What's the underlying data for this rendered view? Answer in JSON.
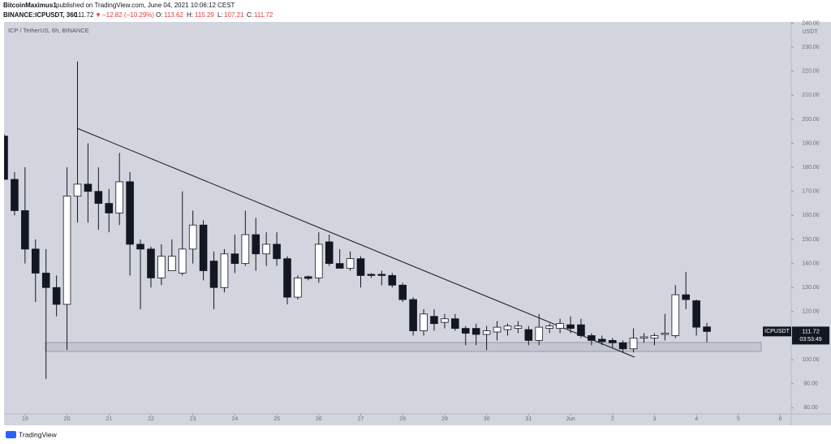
{
  "header": {
    "author": "BitcoinMaximus1",
    "published": "published on TradingView.com, June 04, 2021 10:06:12 CEST",
    "symbol": "BINANCE:ICPUSDT, 360",
    "last": "111.72",
    "arrow": "▼",
    "change": "−12.82 (−10.29%)",
    "o_label": "O:",
    "o": "113.62",
    "h_label": "H:",
    "h": "115.29",
    "l_label": "L:",
    "l": "107.21",
    "c_label": "C:",
    "c": "111.72"
  },
  "footer": {
    "brand": "TradingView"
  },
  "chart_data": {
    "type": "candlestick",
    "legend_title": "ICP / TetherUS, 6h, BINANCE",
    "y_axis_unit": "USDT",
    "up_color": "#ffffff",
    "down_color": "#131722",
    "grid": false,
    "x": [
      18.5,
      18.75,
      19,
      19.25,
      19.5,
      19.75,
      20,
      20.25,
      20.5,
      20.75,
      21,
      21.25,
      21.5,
      21.75,
      22,
      22.25,
      22.5,
      22.75,
      23,
      23.25,
      23.5,
      23.75,
      24,
      24.25,
      24.5,
      24.75,
      25,
      25.25,
      25.5,
      25.75,
      26,
      26.25,
      26.5,
      26.75,
      27,
      27.25,
      27.5,
      27.75,
      28,
      28.25,
      28.5,
      28.75,
      29,
      29.25,
      29.5,
      29.75,
      30,
      30.25,
      30.5,
      30.75,
      31,
      31.25,
      31.5,
      31.75,
      32,
      32.25,
      32.5,
      32.75,
      33,
      33.25,
      33.5,
      33.75,
      34,
      34.25,
      34.5,
      34.75,
      35,
      35.25
    ],
    "open": [
      193,
      175,
      162,
      146,
      136,
      130,
      123,
      168,
      173,
      170,
      165,
      161,
      174,
      148,
      146,
      134,
      137,
      136,
      146,
      156,
      141,
      130,
      144,
      140,
      152,
      144,
      148,
      142,
      126,
      134.5,
      134,
      149,
      140,
      138,
      142,
      135.5,
      135.5,
      135,
      131,
      125,
      112,
      118,
      115.5,
      117,
      113,
      113,
      110.5,
      111.5,
      112.5,
      113,
      112.5,
      108,
      113,
      113,
      114.5,
      114.5,
      110,
      108.5,
      108,
      107,
      104.5,
      109,
      109,
      110.5,
      110,
      127,
      124.5,
      113.62
    ],
    "high": [
      194,
      178,
      180,
      150,
      146,
      135,
      180,
      224,
      190,
      180,
      171,
      186,
      178,
      150,
      147,
      148,
      150,
      170,
      162,
      158,
      145,
      146,
      152,
      162,
      159,
      153,
      153,
      143,
      135,
      135,
      153,
      152,
      146,
      145,
      143,
      136,
      137,
      136,
      132,
      126,
      121,
      121,
      119,
      119,
      114,
      115,
      114,
      116,
      115,
      116,
      114,
      119,
      115,
      117,
      118,
      117,
      111,
      110,
      109,
      108,
      113,
      111,
      111,
      119,
      131,
      136.5,
      125,
      115.29
    ],
    "low": [
      175,
      160,
      140,
      124,
      92,
      118,
      104,
      157,
      157,
      154,
      153,
      156,
      135,
      121,
      130,
      131,
      137,
      135,
      140,
      133,
      121,
      128,
      136,
      139,
      137,
      139,
      139,
      123,
      125,
      133,
      132,
      139,
      138,
      137,
      130,
      134,
      131,
      130,
      124,
      110,
      110,
      112,
      113,
      112,
      106,
      106,
      104,
      108,
      110,
      111,
      106,
      106,
      111,
      111,
      111,
      109,
      106,
      106,
      105,
      103,
      103,
      107,
      106,
      108,
      109,
      121,
      110,
      107.21
    ],
    "close": [
      175,
      162,
      146,
      136,
      130,
      123,
      168,
      173,
      170,
      165,
      161,
      174,
      148,
      146,
      134,
      143,
      143,
      146,
      156,
      137,
      130,
      144,
      140,
      152,
      144,
      148,
      142,
      126,
      134,
      133.8,
      148,
      140,
      138,
      142,
      135,
      135,
      135,
      131,
      125,
      112,
      119,
      115,
      117,
      113,
      111,
      110.5,
      112,
      113.5,
      114,
      114,
      108,
      113.5,
      114,
      115,
      113,
      110,
      108,
      107.5,
      107,
      104.5,
      109,
      109.5,
      110,
      111,
      127,
      125,
      113.5,
      111.72
    ],
    "xlim": [
      18.5,
      37.26
    ],
    "xticks": [
      19,
      20,
      21,
      22,
      23,
      24,
      25,
      26,
      27,
      28,
      29,
      30,
      31,
      {
        "value": 32,
        "label": "Jun"
      },
      {
        "value": 33,
        "label": "2"
      },
      {
        "value": 34,
        "label": "3"
      },
      {
        "value": 35,
        "label": "4"
      },
      {
        "value": 36,
        "label": "5"
      },
      {
        "value": 37,
        "label": "6"
      }
    ],
    "ylim": [
      77.4,
      240.5
    ],
    "yticks": [
      {
        "value": 80,
        "label": "80.00"
      },
      {
        "value": 90,
        "label": "90.00"
      },
      {
        "value": 100,
        "label": "100.00"
      },
      {
        "value": 110,
        "label": "110.00"
      },
      {
        "value": 120,
        "label": "120.00"
      },
      {
        "value": 130,
        "label": "130.00"
      },
      {
        "value": 140,
        "label": "140.00"
      },
      {
        "value": 150,
        "label": "150.00"
      },
      {
        "value": 160,
        "label": "160.00"
      },
      {
        "value": 170,
        "label": "170.00"
      },
      {
        "value": 180,
        "label": "180.00"
      },
      {
        "value": 190,
        "label": "190.00"
      },
      {
        "value": 200,
        "label": "200.00"
      },
      {
        "value": 210,
        "label": "210.00"
      },
      {
        "value": 220,
        "label": "220.00"
      },
      {
        "value": 230,
        "label": "230.00"
      },
      {
        "value": 240,
        "label": "240.00"
      }
    ],
    "last_price": {
      "symbol": "ICPUSDT",
      "price": 111.72,
      "countdown": "03:53:49"
    }
  }
}
